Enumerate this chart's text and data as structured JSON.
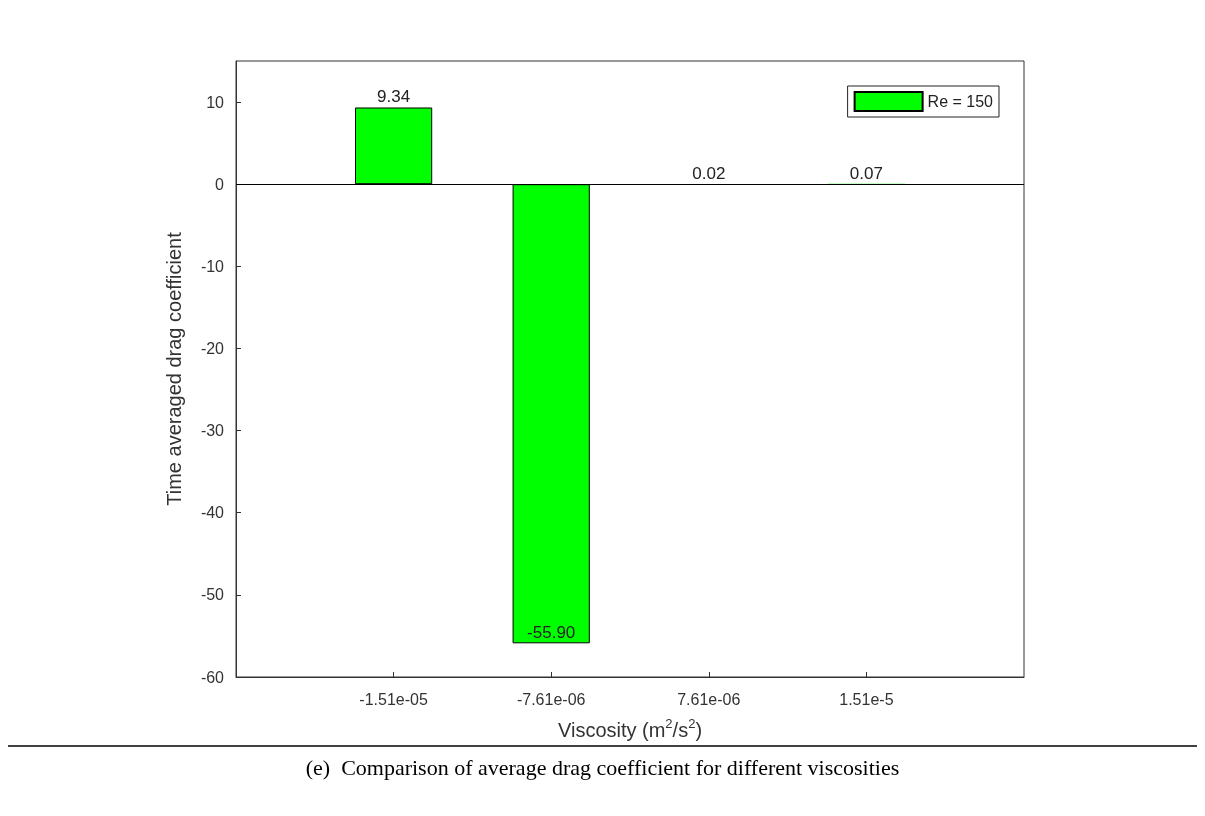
{
  "chart_data": {
    "type": "bar",
    "xlabel": "Viscosity (m$^{2}$/s$^{2}$)",
    "ylabel": "Time averaged drag coefficient",
    "categories": [
      "-1.51e-05",
      "-7.61e-06",
      "7.61e-06",
      "1.51e-5"
    ],
    "series": [
      {
        "name": "Re = 150",
        "color": "#00ff00",
        "values": [
          9.34,
          -55.9,
          0.02,
          0.07
        ],
        "value_labels": [
          "9.34",
          "-55.90",
          "0.02",
          "0.07"
        ]
      }
    ],
    "ref_lines": [
      {
        "axis": "y",
        "value": 0,
        "color": "#000000"
      }
    ],
    "ylim": [
      -60,
      15
    ],
    "yticks": [
      -60,
      -50,
      -40,
      -30,
      -20,
      -10,
      0,
      10
    ],
    "grid": false,
    "legend": "top right",
    "annotations": [
      "(e)  Comparison of average drag coefficient for different viscosities"
    ]
  }
}
